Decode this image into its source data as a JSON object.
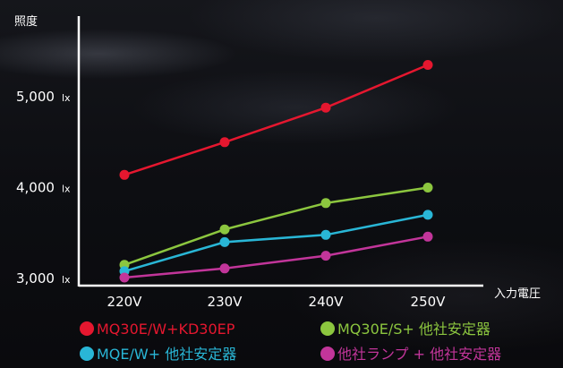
{
  "chart_data": {
    "type": "line",
    "categories": [
      "220V",
      "230V",
      "240V",
      "250V"
    ],
    "y_ticks": [
      "3,000",
      "4,000",
      "5,000"
    ],
    "y_unit": "lx",
    "ylabel": "照度",
    "xlabel": "入力電圧",
    "ylim": [
      3000,
      5500
    ],
    "grid": false,
    "series": [
      {
        "name": "MQ30E/W+KD30EP",
        "color": "#e5172f",
        "values": [
          4140,
          4500,
          4880,
          5350
        ]
      },
      {
        "name": "MQ30E/S+ 他社安定器",
        "color": "#8cc63f",
        "values": [
          3150,
          3540,
          3830,
          4000
        ]
      },
      {
        "name": "MQE/W+ 他社安定器",
        "color": "#29b6d6",
        "values": [
          3080,
          3400,
          3480,
          3700
        ]
      },
      {
        "name": "他社ランプ + 他社安定器",
        "color": "#c2359a",
        "values": [
          3010,
          3110,
          3250,
          3460
        ]
      }
    ]
  }
}
